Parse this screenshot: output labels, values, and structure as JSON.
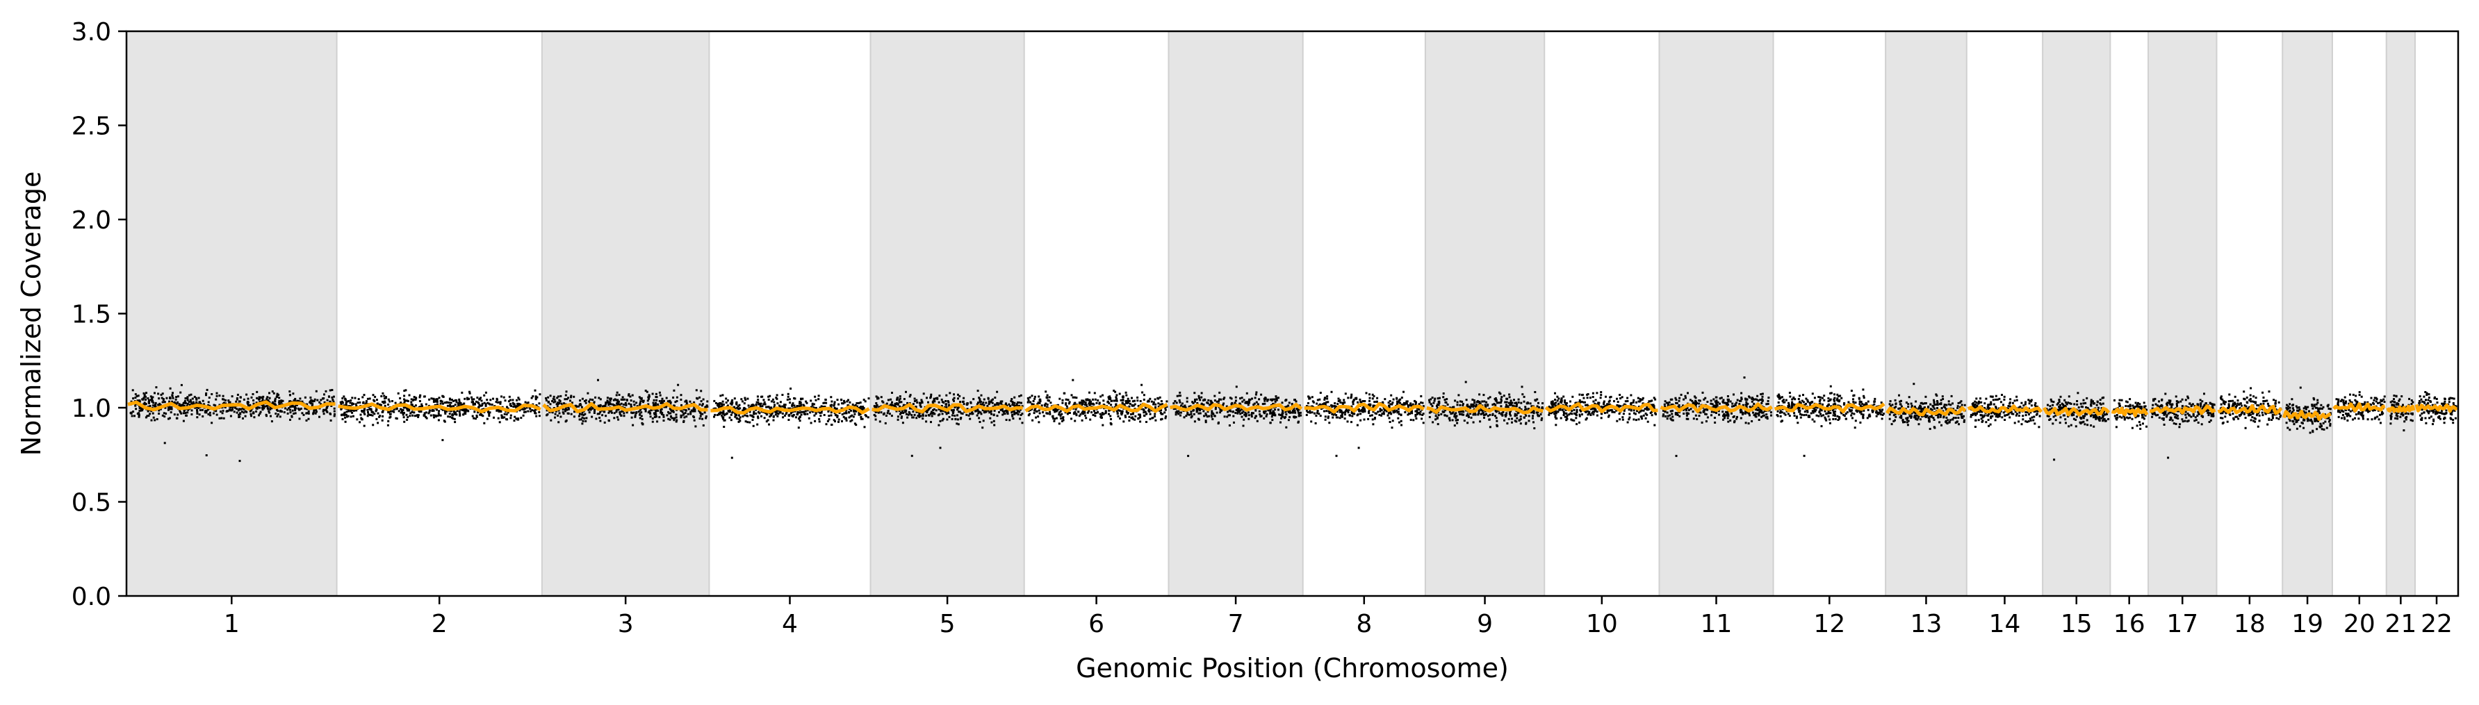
{
  "chart_data": {
    "type": "scatter",
    "title": "",
    "xlabel": "Genomic Position (Chromosome)",
    "ylabel": "Normalized Coverage",
    "ylim": [
      0.0,
      3.0
    ],
    "yticks": [
      "0.0",
      "0.5",
      "1.0",
      "1.5",
      "2.0",
      "2.5",
      "3.0"
    ],
    "grid": false,
    "colors": {
      "points": "#000000",
      "smoothed_line": "#ffa500",
      "band": "#e5e5e5",
      "band_edge": "#d0d0d0"
    },
    "chromosomes": [
      {
        "label": "1",
        "length": 249,
        "shaded": true
      },
      {
        "label": "2",
        "length": 243,
        "shaded": false
      },
      {
        "label": "3",
        "length": 198,
        "shaded": true
      },
      {
        "label": "4",
        "length": 191,
        "shaded": false
      },
      {
        "label": "5",
        "length": 182,
        "shaded": true
      },
      {
        "label": "6",
        "length": 171,
        "shaded": false
      },
      {
        "label": "7",
        "length": 159,
        "shaded": true
      },
      {
        "label": "8",
        "length": 145,
        "shaded": false
      },
      {
        "label": "9",
        "length": 141,
        "shaded": true
      },
      {
        "label": "10",
        "length": 136,
        "shaded": false
      },
      {
        "label": "11",
        "length": 135,
        "shaded": true
      },
      {
        "label": "12",
        "length": 133,
        "shaded": false
      },
      {
        "label": "13",
        "length": 96,
        "shaded": true
      },
      {
        "label": "14",
        "length": 90,
        "shaded": false
      },
      {
        "label": "15",
        "length": 80,
        "shaded": true
      },
      {
        "label": "16",
        "length": 45,
        "shaded": false
      },
      {
        "label": "17",
        "length": 81,
        "shaded": true
      },
      {
        "label": "18",
        "length": 78,
        "shaded": false
      },
      {
        "label": "19",
        "length": 59,
        "shaded": true
      },
      {
        "label": "20",
        "length": 64,
        "shaded": false
      },
      {
        "label": "21",
        "length": 34,
        "shaded": true
      },
      {
        "label": "22",
        "length": 51,
        "shaded": false
      }
    ],
    "series": [
      {
        "name": "bin coverage",
        "kind": "scatter",
        "center": 1.0,
        "spread": 0.05
      },
      {
        "name": "smoothed coverage",
        "kind": "line",
        "values": [
          1.01,
          1.0,
          1.0,
          0.99,
          1.0,
          1.0,
          1.0,
          1.0,
          0.99,
          1.0,
          1.0,
          1.0,
          0.98,
          0.99,
          0.98,
          0.98,
          0.99,
          0.99,
          0.96,
          1.0,
          0.99,
          1.0
        ]
      }
    ]
  }
}
